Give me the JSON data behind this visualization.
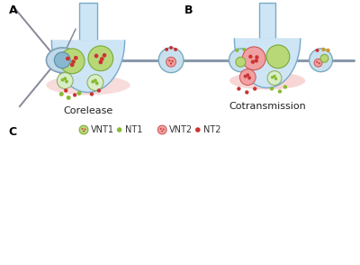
{
  "background_color": "#ffffff",
  "terminal_fill": "#cde5f5",
  "terminal_border": "#7baac8",
  "stalk_fill": "#cde5f5",
  "stalk_border": "#7baac8",
  "cleft_color": "#f5d0d0",
  "green_vesicle_fill": "#b8d878",
  "green_vesicle_border": "#7aaa33",
  "red_vesicle_fill": "#f0a0a0",
  "red_vesicle_border": "#cc5555",
  "red_dot_color": "#cc3333",
  "green_dot_color": "#88bb33",
  "axon_color": "#8899aa",
  "soma_fill": "#c0d8e8",
  "soma_border": "#7aa0b8",
  "nucleus_fill": "#88b8d0",
  "nucleus_border": "#5590a8",
  "bouton_fill": "#c8e0ee",
  "bouton_border": "#7aaac0",
  "dendrite_color": "#888899",
  "label_A": "A",
  "label_B": "B",
  "label_C": "C",
  "text_corelease": "Corelease",
  "text_cotransmission": "Cotransmission",
  "legend_vnt1": "VNT1",
  "legend_nt1": "NT1",
  "legend_vnt2": "VNT2",
  "legend_nt2": "NT2"
}
